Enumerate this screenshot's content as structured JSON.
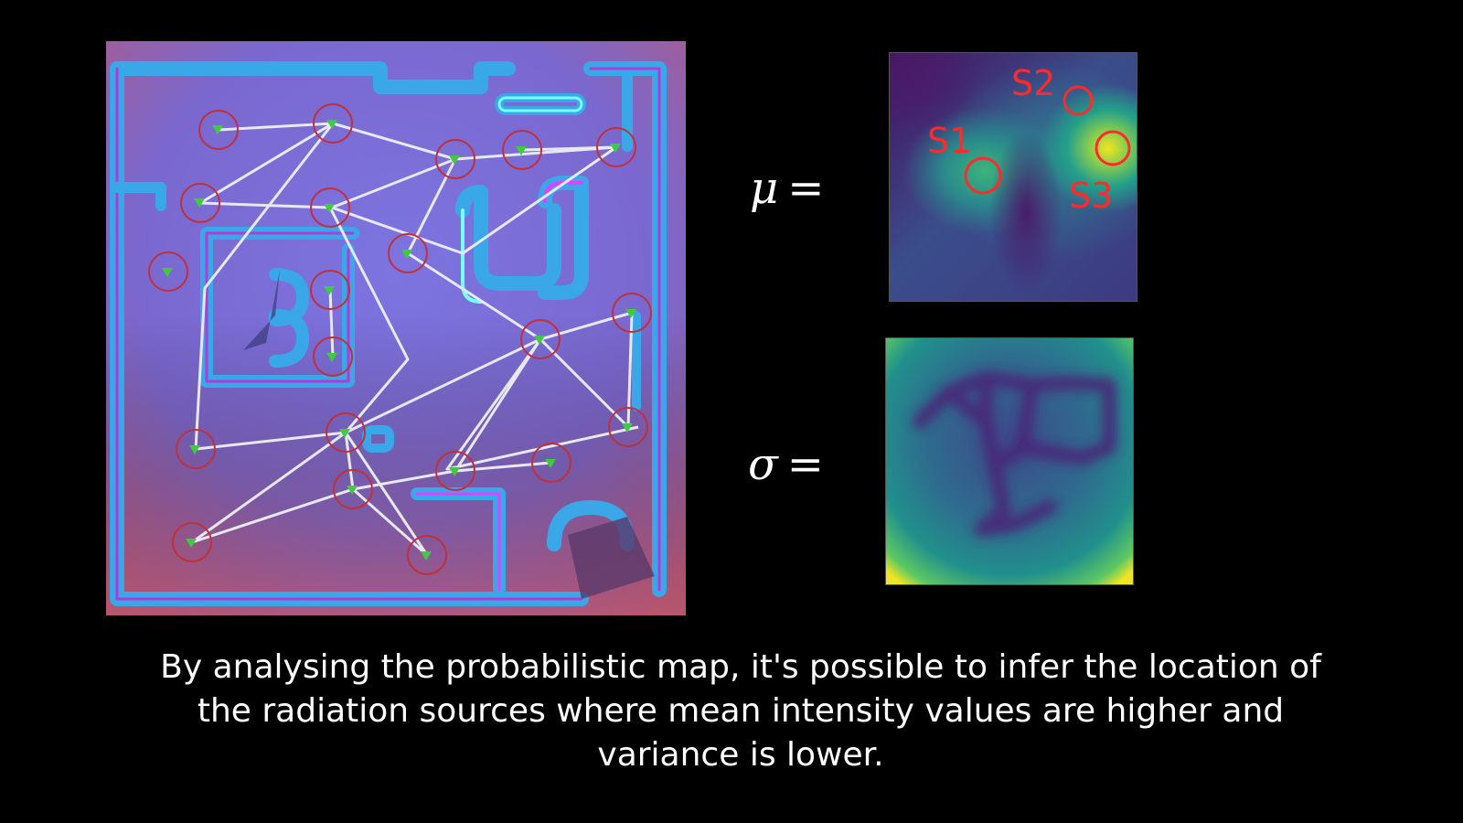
{
  "slide": {
    "mean_label": "μ",
    "sigma_label": "σ",
    "equals": "=",
    "caption_lines": [
      "By analysing the probabilistic map, it's possible to infer the location of",
      "the radiation sources where mean intensity values are higher and",
      "variance is lower."
    ]
  },
  "mean_map": {
    "sources": [
      {
        "label": "S1"
      },
      {
        "label": "S2"
      },
      {
        "label": "S3"
      }
    ]
  },
  "colors": {
    "background": "#000000",
    "annotation_red": "#ff2a2a",
    "path_white": "#e8e8f0",
    "waypoint_red": "#c0303a",
    "wall_blue": "#3aa7e8",
    "floor_purple": "#7a6fd6"
  },
  "icons": {
    "waypoint": "green-arrow-marker-icon",
    "source_marker": "red-circle-icon"
  }
}
